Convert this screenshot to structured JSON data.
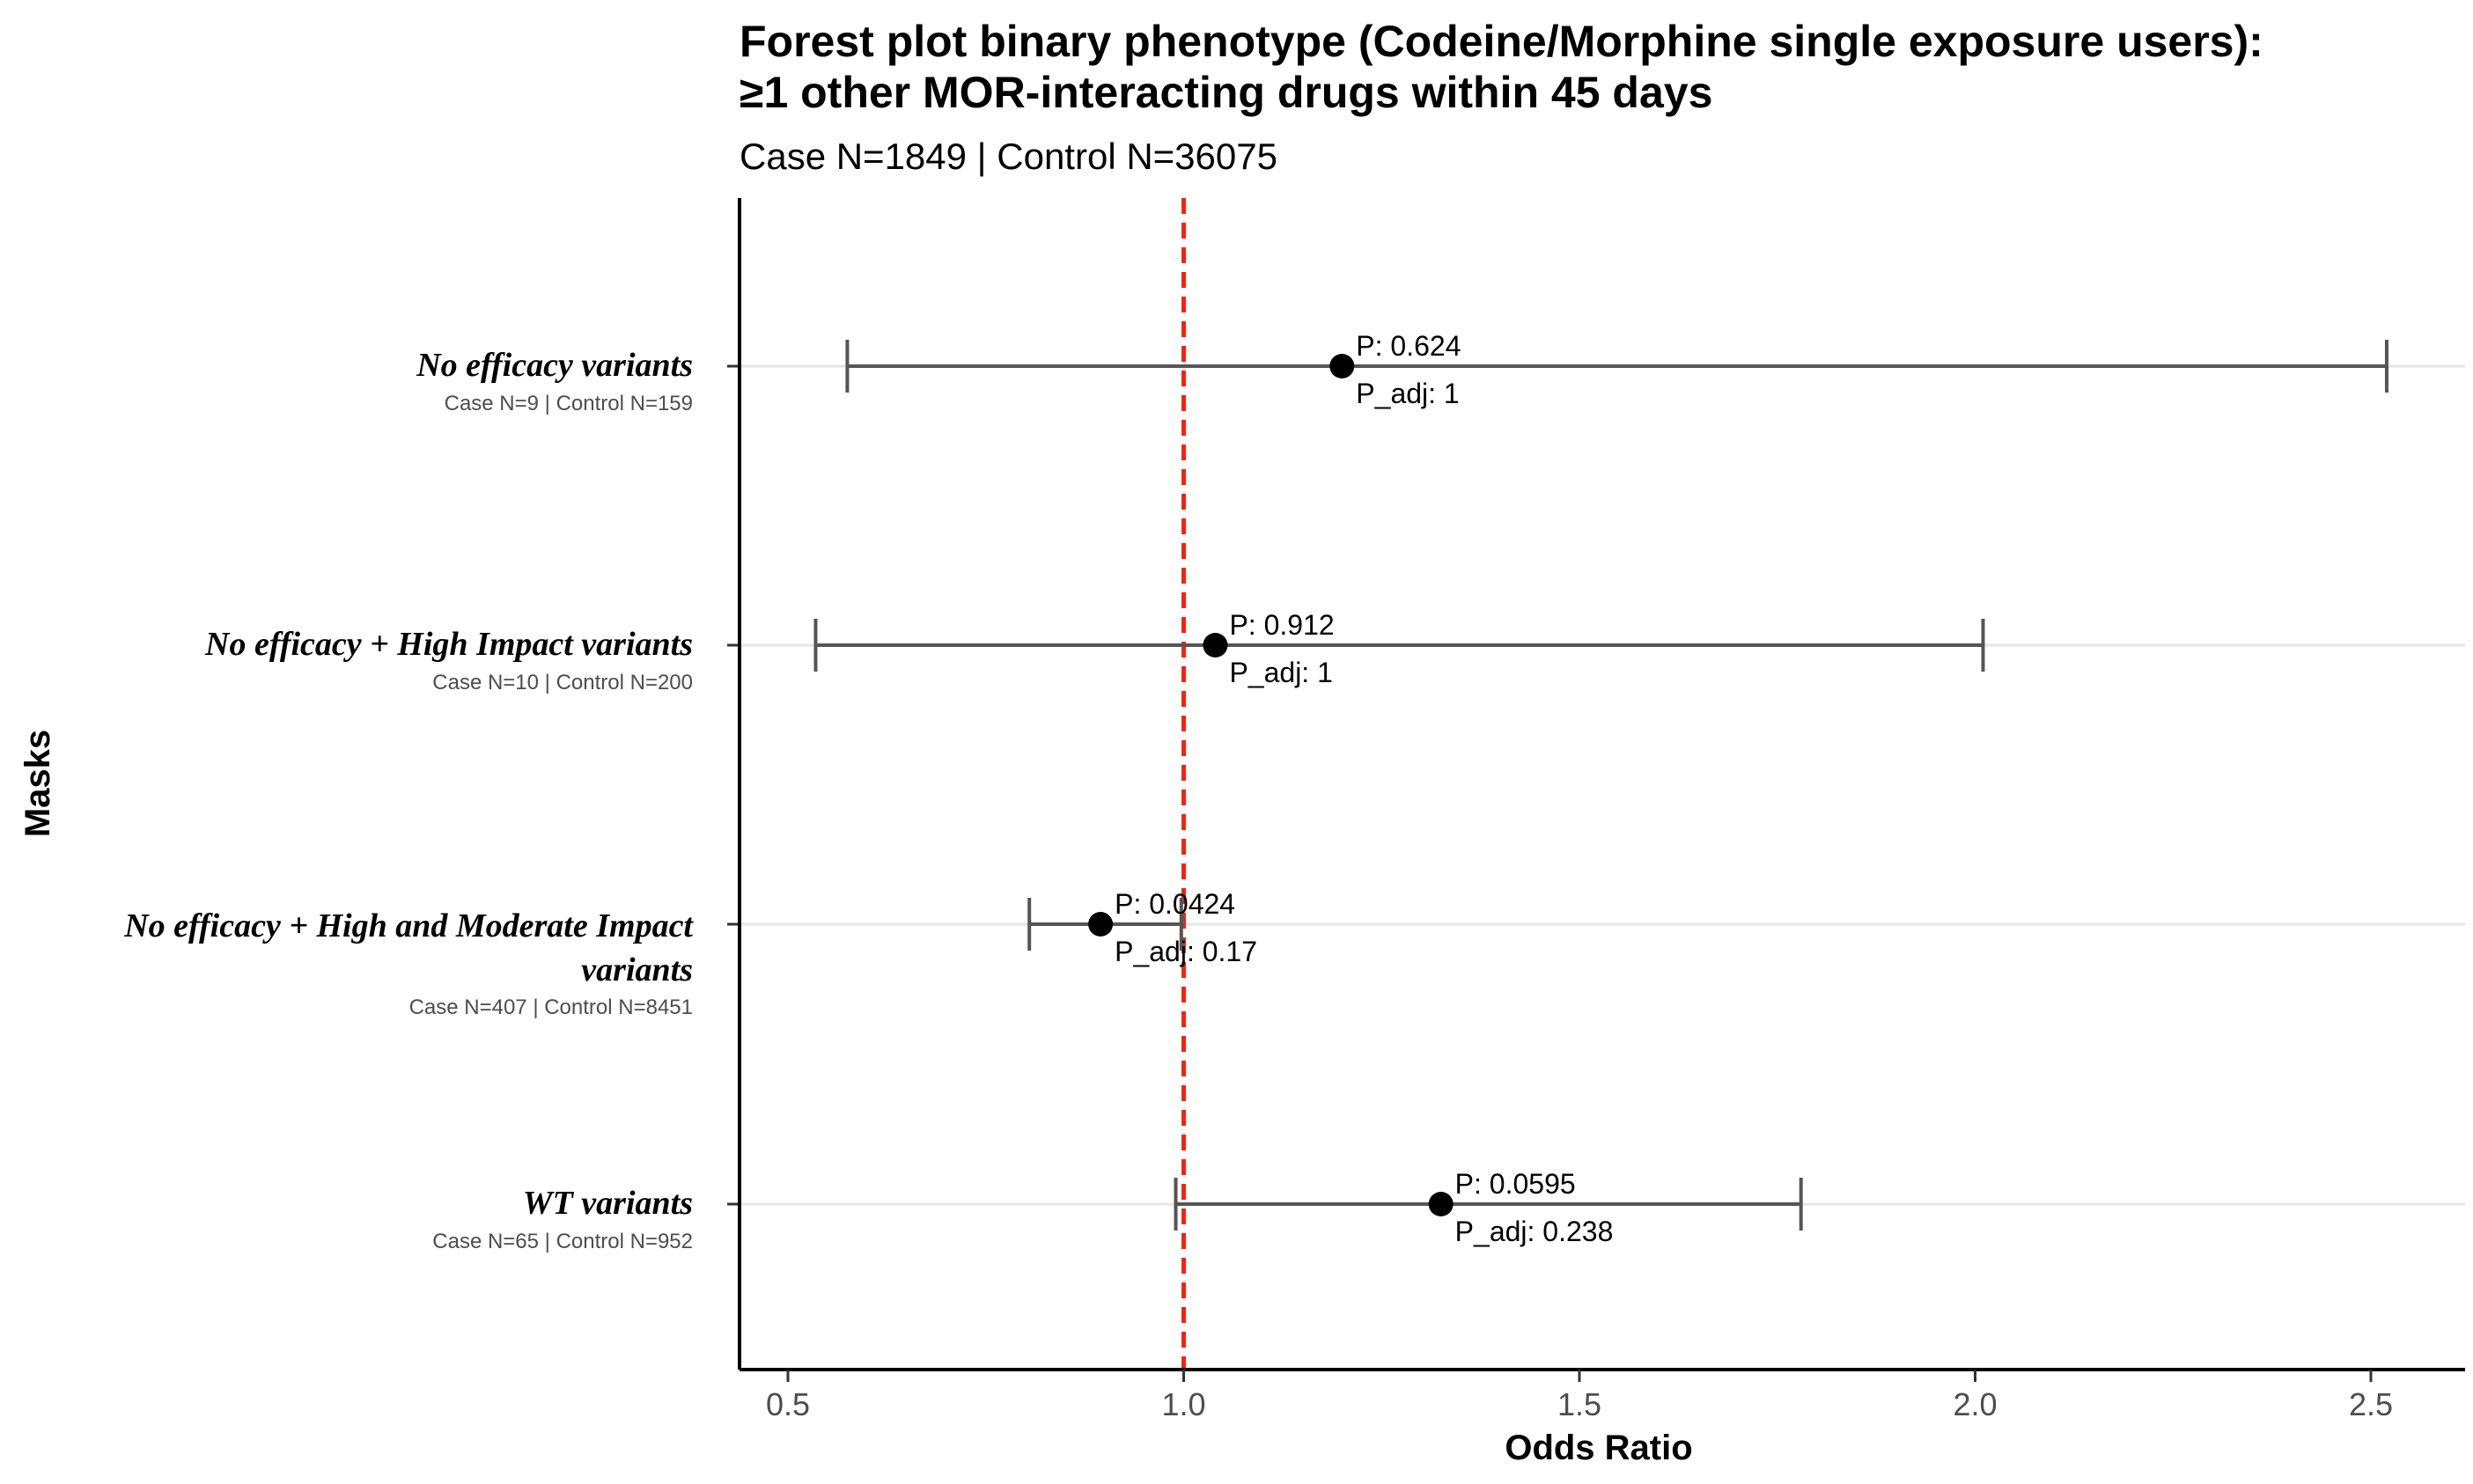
{
  "chart_data": {
    "type": "forest",
    "title_lines": [
      "Forest plot binary phenotype (Codeine/Morphine single exposure users):",
      "≥1 other MOR-interacting drugs within 45 days"
    ],
    "subtitle": "Case N=1849 | Control N=36075",
    "xlabel": "Odds Ratio",
    "ylabel": "Masks",
    "xlim": [
      0.44,
      2.62
    ],
    "x_ticks": [
      0.5,
      1.0,
      1.5,
      2.0,
      2.5
    ],
    "x_tick_labels": [
      "0.5",
      "1.0",
      "1.5",
      "2.0",
      "2.5"
    ],
    "reference_line": 1.0,
    "reference_color": "#ff2200",
    "point_color": "#000000",
    "ci_color": "#555555",
    "grid_color": "#e6e6e6",
    "rows": [
      {
        "label_lines": [
          "No efficacy variants"
        ],
        "sublabel": "Case N=9 | Control N=159",
        "or": 1.2,
        "ci_low": 0.575,
        "ci_high": 2.52,
        "p_label": "P: 0.624",
        "p_adj_label": "P_adj: 1"
      },
      {
        "label_lines": [
          "No efficacy + High Impact variants"
        ],
        "sublabel": "Case N=10 | Control N=200",
        "or": 1.04,
        "ci_low": 0.535,
        "ci_high": 2.01,
        "p_label": "P: 0.912",
        "p_adj_label": "P_adj: 1"
      },
      {
        "label_lines": [
          "No efficacy + High and Moderate Impact",
          "variants"
        ],
        "sublabel": "Case N=407 | Control N=8451",
        "or": 0.895,
        "ci_low": 0.805,
        "ci_high": 0.997,
        "p_label": "P: 0.0424",
        "p_adj_label": "P_adj: 0.17"
      },
      {
        "label_lines": [
          "WT variants"
        ],
        "sublabel": "Case N=65 | Control N=952",
        "or": 1.325,
        "ci_low": 0.99,
        "ci_high": 1.78,
        "p_label": "P: 0.0595",
        "p_adj_label": "P_adj: 0.238"
      }
    ]
  }
}
